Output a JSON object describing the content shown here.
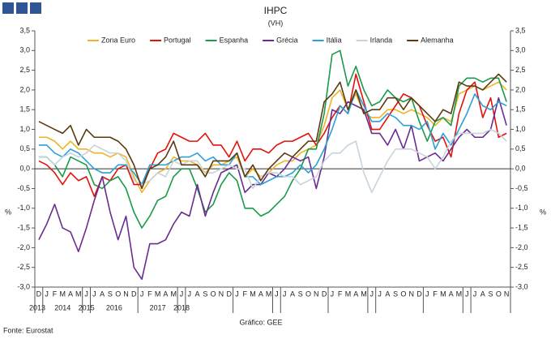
{
  "chart_data": {
    "type": "line",
    "title": "IHPC",
    "subtitle": "(VH)",
    "y_label": "%",
    "source": "Fonte: Eurostat",
    "credit": "Gráfico: GEE",
    "categories": [
      "D",
      "J",
      "F",
      "M",
      "A",
      "M",
      "J",
      "J",
      "A",
      "S",
      "O",
      "N",
      "D",
      "J",
      "F",
      "M",
      "A",
      "M",
      "J",
      "J",
      "A",
      "S",
      "O",
      "N",
      "D",
      "J",
      "F",
      "M",
      "A",
      "M",
      "J",
      "J",
      "A",
      "S",
      "O",
      "N",
      "D",
      "J",
      "F",
      "M",
      "A",
      "M",
      "J",
      "J",
      "A",
      "S",
      "O",
      "N",
      "D",
      "J",
      "F",
      "M",
      "A",
      "M",
      "J",
      "J",
      "A",
      "S",
      "O",
      "N"
    ],
    "years": [
      "2013",
      "2014",
      "2015",
      "2016",
      "2017",
      "2018"
    ],
    "ylim": [
      -3,
      3.5
    ],
    "yticks": [
      {
        "value": -3,
        "label": "-3,0"
      },
      {
        "value": -2.5,
        "label": "-2,5"
      },
      {
        "value": -2,
        "label": "-2,0"
      },
      {
        "value": -1.5,
        "label": "-1,5"
      },
      {
        "value": -1,
        "label": "-1,0"
      },
      {
        "value": -0.5,
        "label": "-0,5"
      },
      {
        "value": 0,
        "label": "0,0"
      },
      {
        "value": 0.5,
        "label": "0,5"
      },
      {
        "value": 1,
        "label": "1,0"
      },
      {
        "value": 1.5,
        "label": "1,5"
      },
      {
        "value": 2,
        "label": "2,0"
      },
      {
        "value": 2.5,
        "label": "2,5"
      },
      {
        "value": 3,
        "label": "3,0"
      },
      {
        "value": 3.5,
        "label": "3,5"
      }
    ],
    "grid": false,
    "legend": "top",
    "series": [
      {
        "name": "Zona Euro",
        "color": "#f0b323",
        "values": [
          0.8,
          0.8,
          0.7,
          0.5,
          0.7,
          0.5,
          0.5,
          0.4,
          0.4,
          0.3,
          0.4,
          0.3,
          -0.2,
          -0.6,
          -0.3,
          -0.1,
          0.0,
          0.3,
          0.2,
          0.2,
          0.1,
          -0.1,
          0.1,
          0.1,
          0.2,
          0.3,
          -0.2,
          0.0,
          -0.2,
          -0.1,
          0.1,
          0.2,
          0.2,
          0.4,
          0.5,
          0.6,
          1.1,
          1.8,
          2.0,
          1.5,
          1.9,
          1.4,
          1.3,
          1.3,
          1.5,
          1.5,
          1.4,
          1.5,
          1.4,
          1.3,
          1.1,
          1.3,
          1.2,
          1.9,
          2.0,
          2.1,
          2.0,
          2.1,
          2.2,
          2.0
        ]
      },
      {
        "name": "Portugal",
        "color": "#e3120b",
        "values": [
          0.2,
          0.1,
          -0.1,
          -0.4,
          -0.1,
          -0.3,
          -0.2,
          -0.7,
          -0.2,
          -0.3,
          0.0,
          0.1,
          -0.4,
          -0.4,
          0.0,
          0.4,
          0.5,
          0.9,
          0.8,
          0.7,
          0.7,
          0.9,
          0.6,
          0.6,
          0.3,
          0.7,
          0.2,
          0.5,
          0.5,
          0.4,
          0.6,
          0.7,
          0.7,
          0.8,
          0.9,
          0.6,
          0.9,
          1.3,
          1.6,
          1.4,
          2.4,
          1.7,
          1.0,
          1.0,
          1.3,
          1.6,
          1.9,
          1.8,
          1.6,
          1.1,
          0.7,
          0.8,
          0.3,
          1.4,
          2.0,
          2.2,
          1.3,
          1.8,
          0.8,
          0.9
        ]
      },
      {
        "name": "Espanha",
        "color": "#1a9a4a",
        "values": [
          0.3,
          0.3,
          0.1,
          -0.2,
          0.3,
          0.2,
          0.1,
          -0.4,
          -0.5,
          -0.3,
          -0.2,
          -0.5,
          -1.1,
          -1.5,
          -1.2,
          -0.8,
          -0.7,
          -0.2,
          0.0,
          0.0,
          -0.5,
          -1.1,
          -0.9,
          -0.4,
          -0.1,
          -0.3,
          -1.0,
          -1.0,
          -1.2,
          -1.1,
          -0.9,
          -0.7,
          -0.3,
          0.0,
          0.5,
          0.5,
          1.4,
          2.9,
          3.0,
          2.1,
          2.6,
          2.0,
          1.6,
          1.7,
          2.0,
          1.8,
          1.7,
          1.8,
          1.2,
          0.7,
          1.2,
          1.3,
          1.1,
          2.1,
          2.3,
          2.3,
          2.2,
          2.3,
          2.3,
          1.7
        ]
      },
      {
        "name": "Grécia",
        "color": "#6a2c91",
        "values": [
          -1.8,
          -1.4,
          -0.9,
          -1.5,
          -1.6,
          -2.1,
          -1.5,
          -0.8,
          -0.2,
          -1.1,
          -1.8,
          -1.2,
          -2.5,
          -2.8,
          -1.9,
          -1.9,
          -1.8,
          -1.4,
          -1.1,
          -1.2,
          -0.4,
          -1.2,
          -0.6,
          -0.1,
          0.0,
          0.1,
          -0.6,
          -0.4,
          -0.4,
          -0.1,
          -0.2,
          0.0,
          0.3,
          0.2,
          0.3,
          -0.5,
          0.3,
          1.5,
          1.4,
          1.7,
          1.6,
          1.5,
          0.9,
          0.9,
          0.6,
          1.0,
          0.5,
          1.1,
          0.2,
          0.3,
          0.4,
          0.2,
          0.5,
          0.8,
          1.0,
          0.8,
          0.8,
          1.0,
          1.8,
          1.1
        ]
      },
      {
        "name": "Itália",
        "color": "#2aa1d8",
        "values": [
          0.6,
          0.6,
          0.4,
          0.3,
          0.5,
          0.4,
          0.2,
          0.0,
          -0.1,
          -0.1,
          0.1,
          0.1,
          -0.1,
          -0.4,
          0.1,
          0.1,
          0.1,
          0.2,
          0.3,
          0.3,
          0.4,
          0.2,
          0.3,
          0.1,
          0.1,
          0.4,
          -0.2,
          -0.2,
          -0.4,
          -0.3,
          -0.2,
          -0.2,
          -0.1,
          0.1,
          -0.1,
          0.1,
          0.5,
          1.0,
          1.6,
          1.4,
          2.0,
          1.6,
          1.2,
          1.2,
          1.4,
          1.3,
          1.1,
          1.1,
          1.0,
          1.2,
          0.5,
          0.9,
          0.6,
          1.0,
          1.4,
          1.9,
          1.6,
          1.5,
          1.7,
          1.6
        ]
      },
      {
        "name": "Irlanda",
        "color": "#c8d3dc",
        "values": [
          0.3,
          0.3,
          0.1,
          0.3,
          0.4,
          0.3,
          0.4,
          0.6,
          0.5,
          0.4,
          0.4,
          0.2,
          -0.3,
          -0.4,
          -0.3,
          -0.1,
          -0.2,
          0.2,
          0.1,
          0.2,
          0.2,
          -0.1,
          -0.1,
          0.0,
          0.1,
          0.0,
          0.0,
          -0.5,
          -0.2,
          -0.1,
          -0.1,
          -0.2,
          -0.2,
          -0.4,
          -0.3,
          -0.2,
          0.2,
          0.4,
          0.4,
          0.6,
          0.7,
          -0.1,
          -0.6,
          -0.2,
          0.2,
          0.5,
          0.5,
          0.5,
          0.4,
          0.3,
          0.0,
          0.3,
          0.7,
          0.9,
          0.9,
          0.9,
          0.9,
          1.0,
          0.9,
          0.7
        ]
      },
      {
        "name": "Alemanha",
        "color": "#5a3a12",
        "values": [
          1.2,
          1.1,
          1.0,
          0.9,
          1.1,
          0.6,
          1.0,
          0.8,
          0.8,
          0.8,
          0.7,
          0.5,
          0.1,
          -0.5,
          0.0,
          0.1,
          0.3,
          0.7,
          0.1,
          0.1,
          0.1,
          -0.2,
          0.2,
          0.2,
          0.2,
          0.4,
          -0.2,
          0.1,
          -0.3,
          0.0,
          0.2,
          0.4,
          0.3,
          0.5,
          0.7,
          0.7,
          1.7,
          1.9,
          2.2,
          1.5,
          2.0,
          1.4,
          1.5,
          1.5,
          1.8,
          1.8,
          1.5,
          1.8,
          1.6,
          1.4,
          1.2,
          1.5,
          1.4,
          2.2,
          2.1,
          2.1,
          2.0,
          2.2,
          2.4,
          2.2
        ]
      }
    ]
  }
}
